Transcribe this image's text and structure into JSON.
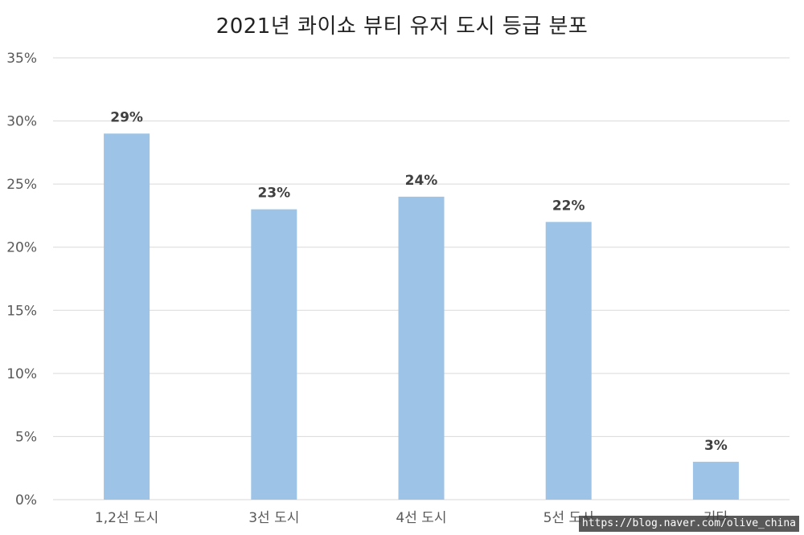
{
  "chart_data": {
    "type": "bar",
    "title": "2021년 콰이쇼 뷰티 유저 도시 등급 분포",
    "categories": [
      "1,2선 도시",
      "3선 도시",
      "4선 도시",
      "5선 도시",
      "기타"
    ],
    "values": [
      29,
      23,
      24,
      22,
      3
    ],
    "data_labels": [
      "29%",
      "23%",
      "24%",
      "22%",
      "3%"
    ],
    "yticks": [
      "0%",
      "5%",
      "10%",
      "15%",
      "20%",
      "25%",
      "30%",
      "35%"
    ],
    "ylim": [
      0,
      35
    ],
    "grid": true,
    "legend": "none"
  },
  "colors": {
    "bar": "#9dc3e6",
    "grid": "#d9d9d9",
    "axis_text": "#595959",
    "label_text": "#404040"
  },
  "watermark": "https://blog.naver.com/olive_china"
}
